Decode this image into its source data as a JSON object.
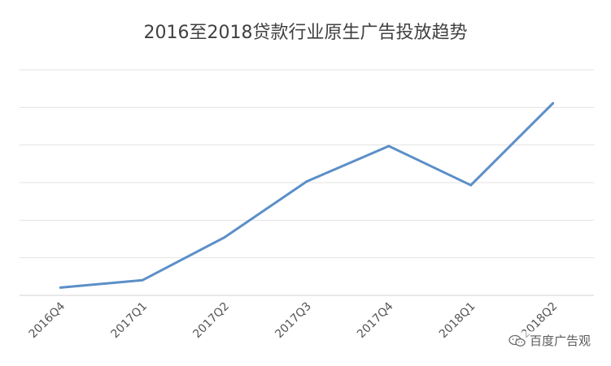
{
  "chart_data": {
    "type": "line",
    "title": "2016至2018贷款行业原生广告投放趋势",
    "categories": [
      "2016Q4",
      "2017Q1",
      "2017Q2",
      "2017Q3",
      "2017Q4",
      "2018Q1",
      "2018Q2"
    ],
    "series": [
      {
        "values": [
          0.15,
          0.35,
          1.5,
          3.0,
          3.95,
          2.9,
          5.1
        ]
      }
    ],
    "ylim": [
      -0.06,
      6.0
    ],
    "grid": true,
    "y_tick_labels_visible": false,
    "line_color": "#5b8fc7"
  },
  "watermark": {
    "text": "百度广告观",
    "icon": "wechat-icon"
  }
}
